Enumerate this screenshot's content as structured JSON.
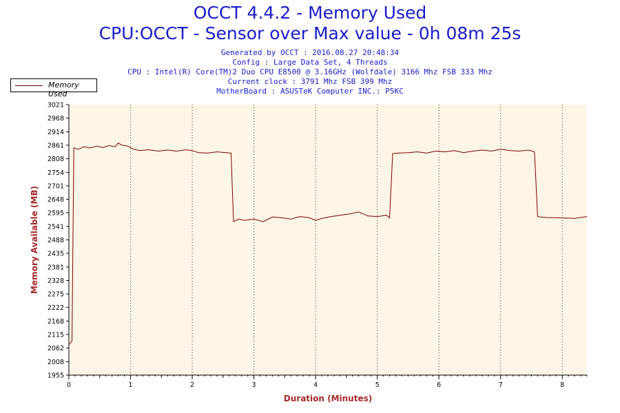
{
  "header": {
    "title": "OCCT 4.4.2 - Memory Used",
    "subtitle": "CPU:OCCT - Sensor over Max value - 0h 08m 25s",
    "info": [
      "Generated by OCCT : 2016.08.27 20:48:34",
      "Config : Large Data Set, 4 Threads",
      "CPU : Intel(R) Core(TM)2 Duo CPU E8500 @ 3.16GHz (Wolfdale) 3166 Mhz FSB 333 Mhz",
      "Current clock : 3791 Mhz FSB 399 Mhz",
      "MotherBoard : ASUSTeK Computer INC.: P5KC"
    ]
  },
  "legend": {
    "label": "Memory Used"
  },
  "colors": {
    "line": "#7a0000",
    "plot_bg": "#fdf5e6",
    "axis_label": "#a52a2a",
    "title": "#1a1acc"
  },
  "chart_data": {
    "type": "line",
    "xlabel": "Duration (Minutes)",
    "ylabel": "Memory Available (MB)",
    "xlim": [
      0,
      8.4
    ],
    "ylim": [
      1955,
      3021
    ],
    "x_ticks": [
      0,
      1,
      2,
      3,
      4,
      5,
      6,
      7,
      8
    ],
    "y_ticks": [
      1955,
      2008,
      2062,
      2115,
      2168,
      2222,
      2275,
      2328,
      2381,
      2435,
      2488,
      2541,
      2595,
      2648,
      2701,
      2754,
      2808,
      2861,
      2914,
      2968,
      3021
    ],
    "grid": "vertical dotted",
    "series": [
      {
        "name": "Memory Used",
        "x": [
          0,
          0.02,
          0.05,
          0.08,
          0.15,
          0.25,
          0.35,
          0.45,
          0.55,
          0.65,
          0.75,
          0.8,
          0.85,
          0.95,
          1.05,
          1.15,
          1.3,
          1.45,
          1.6,
          1.75,
          1.9,
          2.0,
          2.1,
          2.25,
          2.4,
          2.55,
          2.63,
          2.67,
          2.75,
          2.85,
          3.0,
          3.15,
          3.3,
          3.45,
          3.6,
          3.75,
          3.9,
          4.0,
          4.1,
          4.25,
          4.4,
          4.55,
          4.7,
          4.85,
          5.0,
          5.15,
          5.2,
          5.25,
          5.35,
          5.5,
          5.65,
          5.8,
          5.95,
          6.1,
          6.25,
          6.4,
          6.55,
          6.7,
          6.85,
          7.0,
          7.15,
          7.3,
          7.45,
          7.55,
          7.6,
          7.65,
          7.75,
          7.9,
          8.05,
          8.2,
          8.4
        ],
        "values": [
          2075,
          2080,
          2090,
          2851,
          2845,
          2855,
          2850,
          2858,
          2852,
          2860,
          2855,
          2870,
          2862,
          2858,
          2845,
          2840,
          2843,
          2838,
          2842,
          2838,
          2843,
          2840,
          2832,
          2830,
          2835,
          2832,
          2830,
          2560,
          2570,
          2565,
          2570,
          2560,
          2578,
          2575,
          2570,
          2580,
          2575,
          2565,
          2572,
          2580,
          2585,
          2590,
          2598,
          2582,
          2580,
          2585,
          2575,
          2828,
          2830,
          2832,
          2835,
          2830,
          2838,
          2835,
          2840,
          2832,
          2838,
          2842,
          2838,
          2845,
          2840,
          2838,
          2842,
          2835,
          2580,
          2578,
          2576,
          2575,
          2574,
          2573,
          2580
        ]
      }
    ]
  }
}
